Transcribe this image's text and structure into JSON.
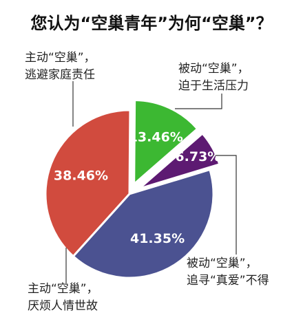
{
  "chart_data": {
    "type": "pie",
    "title": "您认为“空巢青年”为何“空巢”？",
    "slices": [
      {
        "label_lines": [
          "主动“空巢”，",
          "逃避家庭责任"
        ],
        "value": 38.46,
        "value_label": "38.46%",
        "color": "#d14b3e"
      },
      {
        "label_lines": [
          "被动“空巢”，",
          "迫于生活压力"
        ],
        "value": 13.46,
        "value_label": "13.46%",
        "color": "#3cb832"
      },
      {
        "label_lines": [
          "被动“空巢”，",
          "追寻“真爱”不得"
        ],
        "value": 6.73,
        "value_label": "6.73%",
        "color": "#5d1a72"
      },
      {
        "label_lines": [
          "主动“空巢”，",
          "厌烦人情世故"
        ],
        "value": 41.35,
        "value_label": "41.35%",
        "color": "#4b5291"
      }
    ]
  }
}
